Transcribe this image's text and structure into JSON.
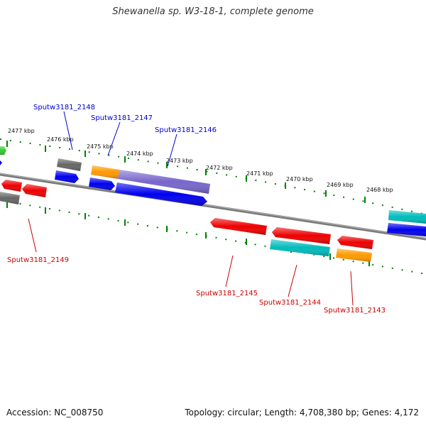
{
  "title": "Shewanella sp. W3-18-1, complete genome",
  "footer": {
    "accession": "Accession: NC_008750",
    "summary": "Topology: circular; Length: 4,708,380 bp; Genes: 4,172"
  },
  "colors": {
    "backbone": "#808080",
    "tick_line": "#008000",
    "forward_label": "#0000cc",
    "reverse_label": "#cc0000",
    "blue": "#0000ee",
    "red": "#ee0000",
    "orange": "#ff9900",
    "purple": "#7766cc",
    "gray": "#666666",
    "cyan": "#00bbbb",
    "green": "#33cc33"
  },
  "ticks": [
    "2477 kbp",
    "2476 kbp",
    "2475 kbp",
    "2474 kbp",
    "2473 kbp",
    "2472 kbp",
    "2471 kbp",
    "2470 kbp",
    "2469 kbp",
    "2468 kbp"
  ],
  "gene_labels": [
    {
      "name": "Sputw3181_2148",
      "strand": "forward"
    },
    {
      "name": "Sputw3181_2147",
      "strand": "forward"
    },
    {
      "name": "Sputw3181_2146",
      "strand": "forward"
    },
    {
      "name": "Sputw3181_2149",
      "strand": "reverse"
    },
    {
      "name": "Sputw3181_2145",
      "strand": "reverse"
    },
    {
      "name": "Sputw3181_2144",
      "strand": "reverse"
    },
    {
      "name": "Sputw3181_2143",
      "strand": "reverse"
    }
  ]
}
